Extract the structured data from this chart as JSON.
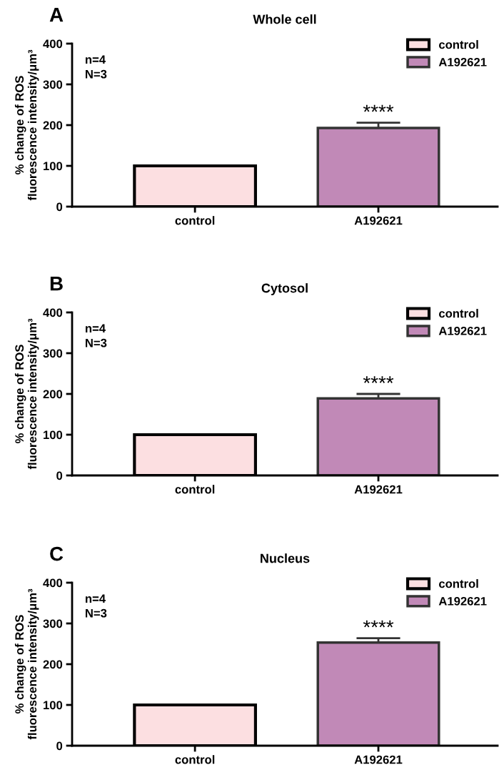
{
  "chart_data": [
    {
      "type": "bar",
      "title": "Whole cell",
      "ylabel": "% change of ROS\nfluorescence intensity/μm³",
      "categories": [
        "control",
        "A192621"
      ],
      "series": [
        {
          "name": "control",
          "color": "#fcdfe1",
          "values": [
            100,
            null
          ],
          "errors": [
            null,
            null
          ]
        },
        {
          "name": "A192621",
          "color": "#c189b7",
          "values": [
            null,
            193
          ],
          "errors": [
            null,
            13
          ]
        }
      ],
      "ylim": [
        0,
        400
      ],
      "yticks": [
        0,
        100,
        200,
        300,
        400
      ],
      "grid": false,
      "legend": "top right",
      "annotations": [
        "A",
        "n=4\nN=3",
        {
          "text": "****",
          "x": "A192621",
          "y": 206
        }
      ]
    },
    {
      "type": "bar",
      "title": "Cytosol",
      "ylabel": "% change of ROS\nfluorescence intensity/μm³",
      "categories": [
        "control",
        "A192621"
      ],
      "series": [
        {
          "name": "control",
          "color": "#fcdfe1",
          "values": [
            100,
            null
          ],
          "errors": [
            null,
            null
          ]
        },
        {
          "name": "A192621",
          "color": "#c189b7",
          "values": [
            null,
            189
          ],
          "errors": [
            null,
            11
          ]
        }
      ],
      "ylim": [
        0,
        400
      ],
      "yticks": [
        0,
        100,
        200,
        300,
        400
      ],
      "grid": false,
      "legend": "top right",
      "annotations": [
        "B",
        "n=4\nN=3",
        {
          "text": "****",
          "x": "A192621",
          "y": 200
        }
      ]
    },
    {
      "type": "bar",
      "title": "Nucleus",
      "ylabel": "% change of ROS\nfluorescence intensity/μm³",
      "categories": [
        "control",
        "A192621"
      ],
      "series": [
        {
          "name": "control",
          "color": "#fcdfe1",
          "values": [
            100,
            null
          ],
          "errors": [
            null,
            null
          ]
        },
        {
          "name": "A192621",
          "color": "#c189b7",
          "values": [
            null,
            253
          ],
          "errors": [
            null,
            11
          ]
        }
      ],
      "ylim": [
        0,
        400
      ],
      "yticks": [
        0,
        100,
        200,
        300,
        400
      ],
      "grid": false,
      "legend": "top right",
      "annotations": [
        "C",
        "n=4\nN=3",
        {
          "text": "****",
          "x": "A192621",
          "y": 264
        }
      ]
    }
  ]
}
